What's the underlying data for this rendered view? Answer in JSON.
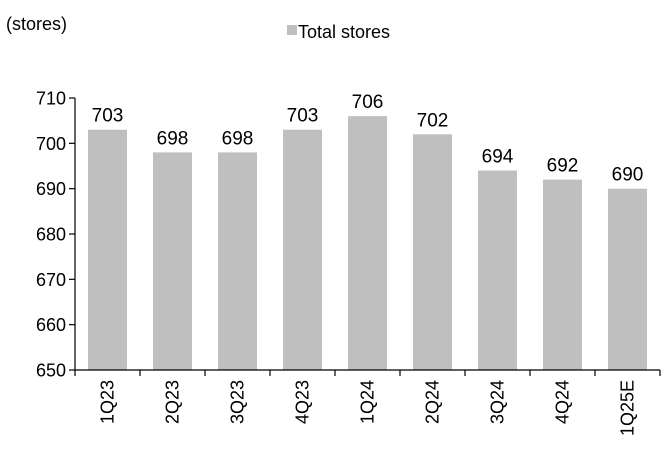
{
  "chart_data": {
    "type": "bar",
    "unit_label": "(stores)",
    "categories": [
      "1Q23",
      "2Q23",
      "3Q23",
      "4Q23",
      "1Q24",
      "2Q24",
      "3Q24",
      "4Q24",
      "1Q25E"
    ],
    "series": [
      {
        "name": "Total stores",
        "values": [
          703,
          698,
          698,
          703,
          706,
          702,
          694,
          692,
          690
        ],
        "color": "#bfbfbf"
      }
    ],
    "ylim": [
      650,
      710
    ],
    "yticks": [
      "650",
      "660",
      "670",
      "680",
      "690",
      "700",
      "710"
    ],
    "data_labels": [
      "703",
      "698",
      "698",
      "703",
      "706",
      "702",
      "694",
      "692",
      "690"
    ],
    "legend_position": "top-center",
    "grid": false,
    "x_tick_rotation": "vertical",
    "axis_color": "#000000"
  }
}
